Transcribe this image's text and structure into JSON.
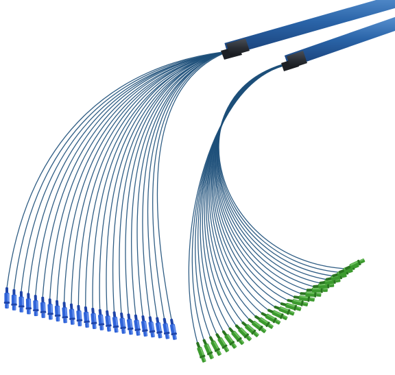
{
  "image": {
    "subject": "fiber-optic-breakout-cables",
    "background_color": "#ffffff",
    "trunk_color": "#2a64a8",
    "trunk_highlight": "#4f88c8",
    "trunk_shadow": "#1c4680",
    "boot_color": "#2b2f36",
    "fiber_color": "#1d4f7a",
    "bundles": [
      {
        "name": "left-bundle",
        "fiber_count": 24,
        "connector_color": "#2f63d8",
        "connector_highlight": "#6e97f0",
        "connector_shadow": "#1e44a8"
      },
      {
        "name": "right-bundle",
        "fiber_count": 24,
        "connector_color": "#3c9a2e",
        "connector_highlight": "#79c86a",
        "connector_shadow": "#2a7420"
      }
    ]
  }
}
